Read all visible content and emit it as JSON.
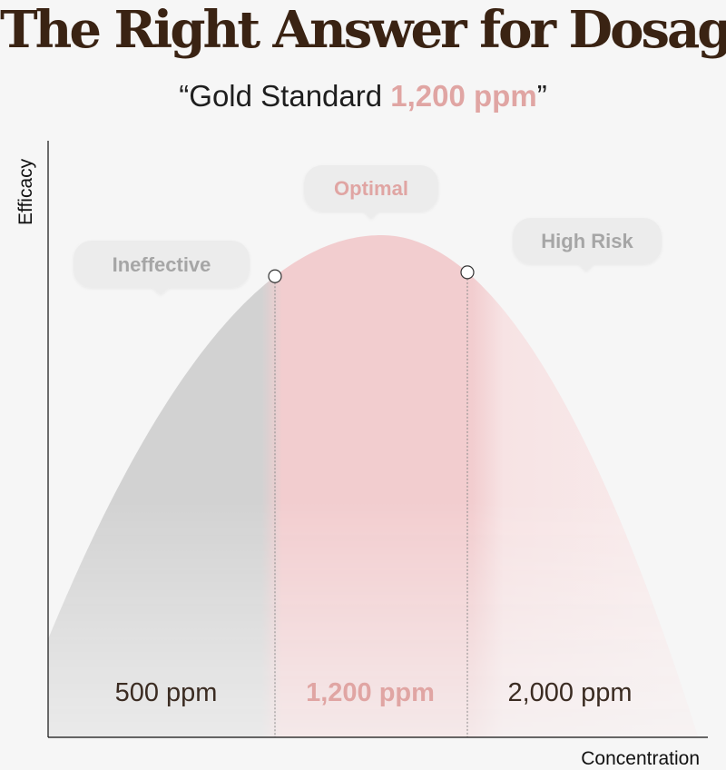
{
  "header": {
    "title": "The Right Answer for Dosage",
    "subtitle_prefix": "“Gold Standard ",
    "subtitle_highlight": "1,200 ppm",
    "subtitle_suffix": "”"
  },
  "chart_data": {
    "type": "area",
    "xlabel": "Concentration",
    "ylabel": "Efficacy",
    "x": [
      500,
      1200,
      2000
    ],
    "x_tick_labels": [
      "500 ppm",
      "1,200 ppm",
      "2,000 ppm"
    ],
    "highlighted_tick": "1,200 ppm",
    "zones": [
      {
        "label": "Ineffective",
        "emphasis": false
      },
      {
        "label": "Optimal",
        "emphasis": true
      },
      {
        "label": "High Risk",
        "emphasis": false
      }
    ],
    "grid": false,
    "legend": "none"
  },
  "colors": {
    "title": "#3a2313",
    "accent": "#e0a5a3",
    "gray_area": "#d2d2d2",
    "pink_area": "#f2cdcf",
    "bubble_bg": "#ececec",
    "bubble_text_gray": "#a6a6a6",
    "tick_text": "#3b2c22"
  }
}
